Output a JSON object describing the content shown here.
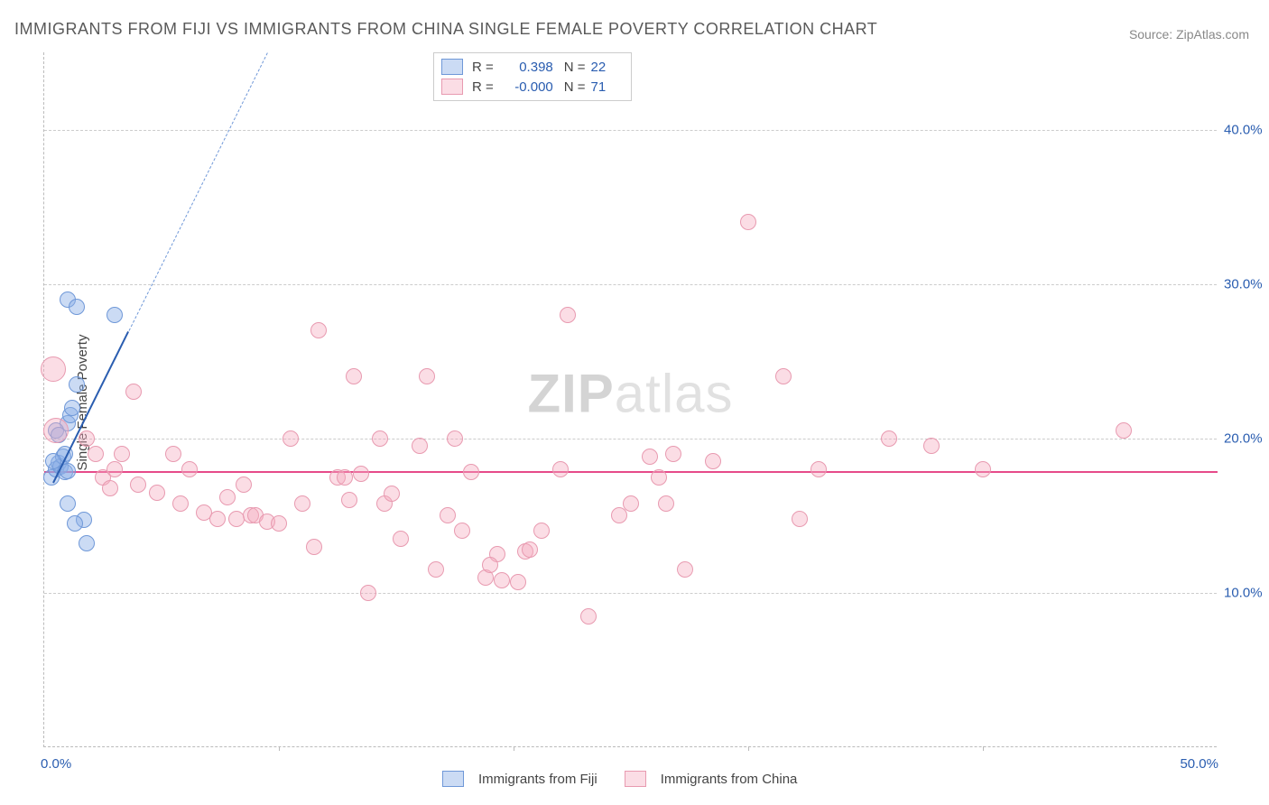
{
  "title": "IMMIGRANTS FROM FIJI VS IMMIGRANTS FROM CHINA SINGLE FEMALE POVERTY CORRELATION CHART",
  "source": "Source: ZipAtlas.com",
  "watermark_prefix": "ZIP",
  "watermark_suffix": "atlas",
  "ylabel": "Single Female Poverty",
  "chart": {
    "type": "scatter",
    "background_color": "#ffffff",
    "grid_color": "#cccccc",
    "axis_color": "#bbbbbb",
    "label_color": "#444444",
    "tick_color": "#2a5db0",
    "tick_fontsize": 15,
    "title_fontsize": 18,
    "label_fontsize": 15,
    "xlim": [
      0,
      50
    ],
    "ylim": [
      0,
      45
    ],
    "yticks": [
      10,
      20,
      30,
      40
    ],
    "ytick_labels": [
      "10.0%",
      "20.0%",
      "30.0%",
      "40.0%"
    ],
    "xticks": [
      10,
      20,
      30,
      40
    ],
    "xtick_min_label": "0.0%",
    "xtick_max_label": "50.0%",
    "marker_radius": 9,
    "marker_border_width": 1,
    "series": [
      {
        "id": "fiji",
        "name": "Immigrants from Fiji",
        "fill": "rgba(140,175,230,0.45)",
        "stroke": "#6f98d8",
        "r_label": "R =",
        "r_value": "0.398",
        "n_label": "N =",
        "n_value": "22",
        "regression": {
          "solid": {
            "x1": 0.4,
            "y1": 17.2,
            "x2": 3.6,
            "y2": 27.0,
            "color": "#2a5db0",
            "width": 2
          },
          "dashed": {
            "x1": 3.6,
            "y1": 27.0,
            "x2": 9.5,
            "y2": 45.0,
            "color": "#6f98d8",
            "width": 1,
            "dash": "6,6"
          }
        },
        "points": [
          {
            "x": 0.3,
            "y": 17.5
          },
          {
            "x": 0.5,
            "y": 18.0
          },
          {
            "x": 0.6,
            "y": 18.4
          },
          {
            "x": 0.7,
            "y": 18.2
          },
          {
            "x": 0.8,
            "y": 18.8
          },
          {
            "x": 0.9,
            "y": 19.0
          },
          {
            "x": 1.0,
            "y": 21.0
          },
          {
            "x": 1.1,
            "y": 21.5
          },
          {
            "x": 1.2,
            "y": 22.0
          },
          {
            "x": 1.4,
            "y": 23.5
          },
          {
            "x": 1.0,
            "y": 29.0
          },
          {
            "x": 1.4,
            "y": 28.5
          },
          {
            "x": 3.0,
            "y": 28.0
          },
          {
            "x": 1.0,
            "y": 15.8
          },
          {
            "x": 1.7,
            "y": 14.7
          },
          {
            "x": 1.3,
            "y": 14.5
          },
          {
            "x": 1.8,
            "y": 13.2
          },
          {
            "x": 0.5,
            "y": 20.5
          },
          {
            "x": 0.6,
            "y": 20.2
          },
          {
            "x": 0.9,
            "y": 17.8
          },
          {
            "x": 1.0,
            "y": 17.9
          },
          {
            "x": 0.4,
            "y": 18.5
          }
        ]
      },
      {
        "id": "china",
        "name": "Immigrants from China",
        "fill": "rgba(245,170,190,0.40)",
        "stroke": "#e89ab0",
        "r_label": "R =",
        "r_value": "-0.000",
        "n_label": "N =",
        "n_value": "71",
        "regression": {
          "solid": {
            "x1": 0,
            "y1": 17.9,
            "x2": 50,
            "y2": 17.9,
            "color": "#e64a8a",
            "width": 2
          }
        },
        "points": [
          {
            "x": 0.4,
            "y": 24.5,
            "r": 14
          },
          {
            "x": 0.5,
            "y": 20.5,
            "r": 14
          },
          {
            "x": 1.8,
            "y": 20.0
          },
          {
            "x": 2.2,
            "y": 19.0
          },
          {
            "x": 2.5,
            "y": 17.5
          },
          {
            "x": 3.0,
            "y": 18.0
          },
          {
            "x": 3.3,
            "y": 19.0
          },
          {
            "x": 3.8,
            "y": 23.0
          },
          {
            "x": 4.8,
            "y": 16.5
          },
          {
            "x": 5.5,
            "y": 19.0
          },
          {
            "x": 5.8,
            "y": 15.8
          },
          {
            "x": 6.2,
            "y": 18.0
          },
          {
            "x": 7.4,
            "y": 14.8
          },
          {
            "x": 7.8,
            "y": 16.2
          },
          {
            "x": 8.2,
            "y": 14.8
          },
          {
            "x": 8.8,
            "y": 15.0
          },
          {
            "x": 9.0,
            "y": 15.0
          },
          {
            "x": 9.5,
            "y": 14.6
          },
          {
            "x": 10.5,
            "y": 20.0
          },
          {
            "x": 11.0,
            "y": 15.8
          },
          {
            "x": 11.5,
            "y": 13.0
          },
          {
            "x": 11.7,
            "y": 27.0
          },
          {
            "x": 12.5,
            "y": 17.5
          },
          {
            "x": 12.8,
            "y": 17.5
          },
          {
            "x": 13.0,
            "y": 16.0
          },
          {
            "x": 13.2,
            "y": 24.0
          },
          {
            "x": 13.5,
            "y": 17.7
          },
          {
            "x": 13.8,
            "y": 10.0
          },
          {
            "x": 14.3,
            "y": 20.0
          },
          {
            "x": 14.5,
            "y": 15.8
          },
          {
            "x": 14.8,
            "y": 16.4
          },
          {
            "x": 15.2,
            "y": 13.5
          },
          {
            "x": 16.0,
            "y": 19.5
          },
          {
            "x": 16.3,
            "y": 24.0
          },
          {
            "x": 16.7,
            "y": 11.5
          },
          {
            "x": 17.2,
            "y": 15.0
          },
          {
            "x": 17.8,
            "y": 14.0
          },
          {
            "x": 18.2,
            "y": 17.8
          },
          {
            "x": 18.8,
            "y": 11.0
          },
          {
            "x": 19.3,
            "y": 12.5
          },
          {
            "x": 19.5,
            "y": 10.8
          },
          {
            "x": 20.2,
            "y": 10.7
          },
          {
            "x": 20.5,
            "y": 12.7
          },
          {
            "x": 20.7,
            "y": 12.8
          },
          {
            "x": 21.2,
            "y": 14.0
          },
          {
            "x": 22.0,
            "y": 18.0
          },
          {
            "x": 22.3,
            "y": 28.0
          },
          {
            "x": 23.2,
            "y": 8.5
          },
          {
            "x": 24.5,
            "y": 15.0
          },
          {
            "x": 25.0,
            "y": 15.8
          },
          {
            "x": 25.8,
            "y": 18.8
          },
          {
            "x": 26.2,
            "y": 17.5
          },
          {
            "x": 26.5,
            "y": 15.8
          },
          {
            "x": 26.8,
            "y": 19.0
          },
          {
            "x": 27.3,
            "y": 11.5
          },
          {
            "x": 28.5,
            "y": 18.5
          },
          {
            "x": 30.0,
            "y": 34.0
          },
          {
            "x": 31.5,
            "y": 24.0
          },
          {
            "x": 32.2,
            "y": 14.8
          },
          {
            "x": 33.0,
            "y": 18.0
          },
          {
            "x": 36.0,
            "y": 20.0
          },
          {
            "x": 37.8,
            "y": 19.5
          },
          {
            "x": 40.0,
            "y": 18.0
          },
          {
            "x": 46.0,
            "y": 20.5
          },
          {
            "x": 2.8,
            "y": 16.8
          },
          {
            "x": 4.0,
            "y": 17.0
          },
          {
            "x": 6.8,
            "y": 15.2
          },
          {
            "x": 8.5,
            "y": 17.0
          },
          {
            "x": 10.0,
            "y": 14.5
          },
          {
            "x": 19.0,
            "y": 11.8
          },
          {
            "x": 17.5,
            "y": 20.0
          }
        ]
      }
    ]
  },
  "legend_top": {
    "swatches": [
      "fiji",
      "china"
    ]
  },
  "legend_bottom": {
    "items": [
      "fiji",
      "china"
    ]
  }
}
